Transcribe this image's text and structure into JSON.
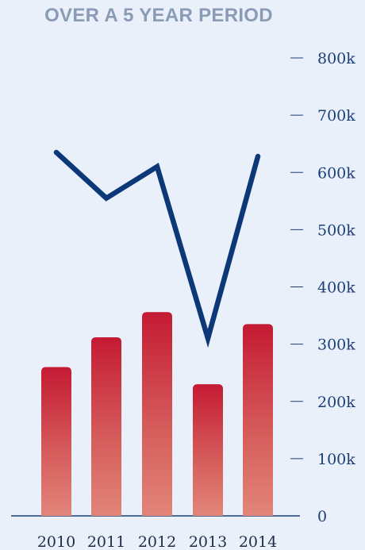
{
  "title": "OVER A 5 YEAR PERIOD",
  "chart_data": {
    "type": "bar",
    "title": "OVER A 5 YEAR PERIOD",
    "categories": [
      "2010",
      "2011",
      "2012",
      "2013",
      "2014"
    ],
    "series": [
      {
        "type": "bar",
        "values": [
          260,
          312,
          356,
          230,
          335
        ],
        "color": "#c8202f"
      },
      {
        "type": "line",
        "values": [
          635,
          555,
          610,
          310,
          628
        ],
        "color": "#0c3878"
      }
    ],
    "ylim": [
      0,
      800
    ],
    "yticks": [
      0,
      100,
      200,
      300,
      400,
      500,
      600,
      700,
      800
    ],
    "ytick_labels": [
      "0",
      "100k",
      "200k",
      "300k",
      "400k",
      "500k",
      "600k",
      "700k",
      "800k"
    ],
    "y_axis_position": "right",
    "grid": false,
    "legend": "none"
  }
}
